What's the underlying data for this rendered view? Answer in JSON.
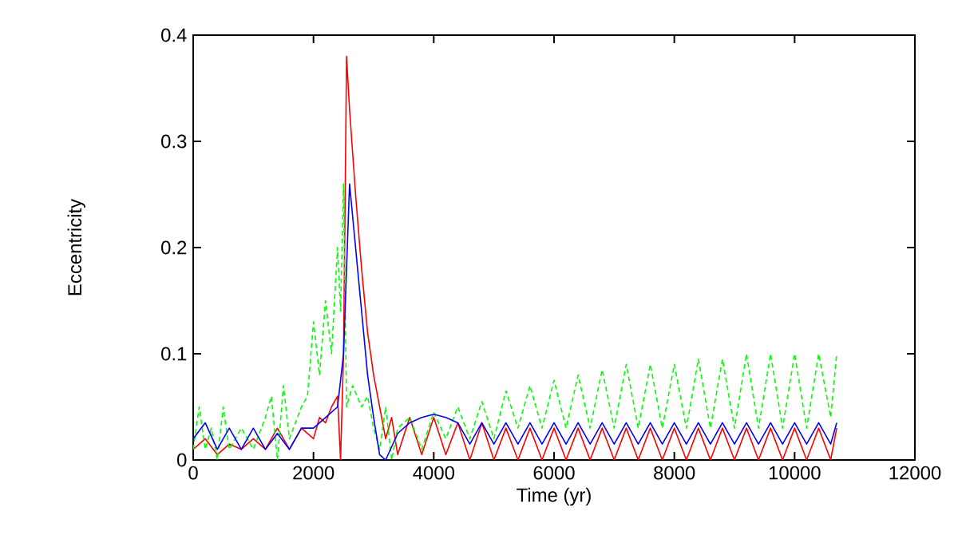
{
  "chart_data": {
    "type": "line",
    "xlabel": "Time (yr)",
    "ylabel": "Eccentricity",
    "xlim": [
      0,
      12000
    ],
    "ylim": [
      0,
      0.4
    ],
    "xticks": [
      0,
      2000,
      4000,
      6000,
      8000,
      10000,
      12000
    ],
    "yticks": [
      0,
      0.1,
      0.2,
      0.3,
      0.4
    ],
    "marker": "none",
    "series": [
      {
        "color": "#ff0000",
        "line_style": "solid",
        "x": [
          0,
          200,
          400,
          600,
          800,
          1000,
          1200,
          1400,
          1600,
          1800,
          2000,
          2100,
          2200,
          2300,
          2400,
          2450,
          2500,
          2550,
          2600,
          2700,
          2800,
          2900,
          3000,
          3100,
          3200,
          3300,
          3400,
          3600,
          3800,
          4000,
          4200,
          4400,
          4600,
          4800,
          5000,
          5200,
          5400,
          5600,
          5800,
          6000,
          6200,
          6400,
          6600,
          6800,
          7000,
          7200,
          7400,
          7600,
          7800,
          8000,
          8200,
          8400,
          8600,
          8800,
          9000,
          9200,
          9400,
          9600,
          9800,
          10000,
          10200,
          10400,
          10600,
          10700
        ],
        "values": [
          0.01,
          0.02,
          0.005,
          0.015,
          0.01,
          0.02,
          0.01,
          0.03,
          0.01,
          0.03,
          0.02,
          0.04,
          0.035,
          0.05,
          0.06,
          0.0,
          0.1,
          0.38,
          0.33,
          0.25,
          0.18,
          0.12,
          0.08,
          0.05,
          0.02,
          0.04,
          0.005,
          0.04,
          0.005,
          0.04,
          0.005,
          0.035,
          0.0,
          0.035,
          0.0,
          0.03,
          0.0,
          0.03,
          0.0,
          0.03,
          0.0,
          0.03,
          0.0,
          0.03,
          0.0,
          0.03,
          0.0,
          0.03,
          0.0,
          0.03,
          0.0,
          0.03,
          0.0,
          0.03,
          0.0,
          0.03,
          0.0,
          0.03,
          0.0,
          0.03,
          0.0,
          0.03,
          0.0,
          0.03
        ]
      },
      {
        "color": "#00ff00",
        "line_style": "dashed",
        "x": [
          0,
          100,
          200,
          300,
          400,
          500,
          600,
          800,
          1000,
          1200,
          1300,
          1400,
          1500,
          1600,
          1800,
          1900,
          2000,
          2100,
          2200,
          2300,
          2400,
          2450,
          2500,
          2550,
          2650,
          2800,
          2900,
          3000,
          3100,
          3200,
          3300,
          3400,
          3600,
          3800,
          4000,
          4200,
          4400,
          4600,
          4800,
          5000,
          5200,
          5400,
          5600,
          5800,
          6000,
          6200,
          6400,
          6600,
          6800,
          7000,
          7200,
          7400,
          7600,
          7800,
          8000,
          8200,
          8400,
          8600,
          8800,
          9000,
          9200,
          9400,
          9600,
          9800,
          10000,
          10200,
          10400,
          10600,
          10700
        ],
        "values": [
          0.01,
          0.05,
          0.01,
          0.03,
          0.0,
          0.05,
          0.01,
          0.03,
          0.01,
          0.04,
          0.06,
          0.0,
          0.07,
          0.02,
          0.05,
          0.06,
          0.13,
          0.08,
          0.15,
          0.1,
          0.2,
          0.14,
          0.26,
          0.05,
          0.07,
          0.05,
          0.06,
          0.03,
          0.01,
          0.05,
          0.0,
          0.03,
          0.04,
          0.01,
          0.045,
          0.02,
          0.05,
          0.02,
          0.055,
          0.02,
          0.065,
          0.03,
          0.07,
          0.03,
          0.075,
          0.03,
          0.08,
          0.03,
          0.085,
          0.03,
          0.09,
          0.03,
          0.09,
          0.03,
          0.09,
          0.03,
          0.095,
          0.03,
          0.095,
          0.03,
          0.1,
          0.03,
          0.1,
          0.03,
          0.1,
          0.03,
          0.1,
          0.04,
          0.1
        ]
      },
      {
        "color": "#0000ff",
        "line_style": "solid",
        "x": [
          0,
          200,
          400,
          600,
          800,
          1000,
          1200,
          1400,
          1600,
          1800,
          2000,
          2200,
          2400,
          2500,
          2600,
          2700,
          2800,
          2900,
          3000,
          3100,
          3200,
          3400,
          3600,
          3800,
          4000,
          4200,
          4400,
          4600,
          4800,
          5000,
          5200,
          5400,
          5600,
          5800,
          6000,
          6200,
          6400,
          6600,
          6800,
          7000,
          7200,
          7400,
          7600,
          7800,
          8000,
          8200,
          8400,
          8600,
          8800,
          9000,
          9200,
          9400,
          9600,
          9800,
          10000,
          10200,
          10400,
          10600,
          10700
        ],
        "values": [
          0.02,
          0.035,
          0.01,
          0.03,
          0.01,
          0.03,
          0.01,
          0.025,
          0.01,
          0.03,
          0.03,
          0.04,
          0.05,
          0.1,
          0.26,
          0.2,
          0.14,
          0.08,
          0.04,
          0.005,
          0.0,
          0.025,
          0.035,
          0.04,
          0.043,
          0.04,
          0.035,
          0.015,
          0.035,
          0.015,
          0.035,
          0.015,
          0.035,
          0.015,
          0.035,
          0.015,
          0.035,
          0.015,
          0.035,
          0.015,
          0.035,
          0.015,
          0.035,
          0.015,
          0.035,
          0.015,
          0.035,
          0.015,
          0.035,
          0.015,
          0.035,
          0.015,
          0.035,
          0.015,
          0.035,
          0.015,
          0.035,
          0.015,
          0.035
        ]
      }
    ]
  }
}
